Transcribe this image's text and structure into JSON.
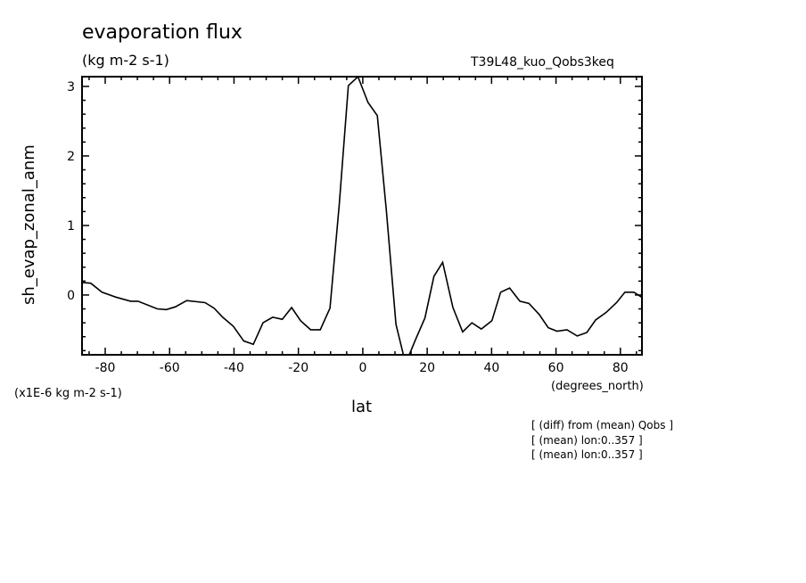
{
  "chart_data": {
    "type": "line",
    "title": "evaporation flux",
    "units": "(kg m-2 s-1)",
    "run_label": "T39L48_kuo_Qobs3keq",
    "xlabel": "lat",
    "x_units": "(degrees_north)",
    "ylabel": "sh_evap_zonal_anm",
    "y_scale_label": "(x1E-6 kg m-2 s-1)",
    "xlim": [
      -87.2,
      86.7
    ],
    "ylim": [
      -0.86,
      3.14
    ],
    "x_ticks": [
      -80,
      -60,
      -40,
      -20,
      0,
      20,
      40,
      60,
      80
    ],
    "x_tick_labels": [
      "-80",
      "-60",
      "-40",
      "-20",
      "0",
      "20",
      "40",
      "60",
      "80"
    ],
    "y_ticks": [
      0,
      1,
      2,
      3
    ],
    "y_tick_labels": [
      "0",
      "1",
      "2",
      "3"
    ],
    "grid": false,
    "series": [
      {
        "x": [
          -87.0,
          -84.5,
          -81.0,
          -76.7,
          -72.1,
          -69.8,
          -63.8,
          -61.0,
          -58.2,
          -54.7,
          -49.0,
          -46.2,
          -43.5,
          -40.2,
          -37.0,
          -34.0,
          -31.0,
          -28.0,
          -25.0,
          -22.1,
          -19.3,
          -16.2,
          -13.2,
          -10.2,
          -7.3,
          -4.5,
          -1.5,
          1.6,
          4.5,
          7.3,
          10.3,
          13.3,
          16.3,
          19.3,
          22.1,
          24.8,
          28.0,
          31.0,
          33.9,
          36.8,
          40.1,
          42.8,
          45.6,
          48.8,
          51.6,
          54.8,
          57.6,
          60.3,
          63.4,
          66.6,
          69.6,
          72.3,
          75.6,
          78.8,
          81.4,
          84.2,
          86.6
        ],
        "y": [
          0.18,
          0.17,
          0.04,
          -0.03,
          -0.09,
          -0.09,
          -0.2,
          -0.21,
          -0.17,
          -0.08,
          -0.11,
          -0.19,
          -0.32,
          -0.45,
          -0.66,
          -0.71,
          -0.4,
          -0.32,
          -0.35,
          -0.18,
          -0.37,
          -0.5,
          -0.5,
          -0.19,
          1.3,
          3.01,
          3.14,
          2.77,
          2.58,
          1.22,
          -0.42,
          -0.99,
          -0.65,
          -0.33,
          0.27,
          0.47,
          -0.18,
          -0.53,
          -0.4,
          -0.49,
          -0.37,
          0.04,
          0.1,
          -0.09,
          -0.12,
          -0.28,
          -0.47,
          -0.52,
          -0.5,
          -0.59,
          -0.54,
          -0.36,
          -0.25,
          -0.11,
          0.04,
          0.04,
          -0.03
        ]
      }
    ],
    "annotations": [
      "[ (diff) from (mean) Qobs ]",
      "[ (mean) lon:0..357 ]",
      "[ (mean) lon:0..357 ]"
    ]
  }
}
